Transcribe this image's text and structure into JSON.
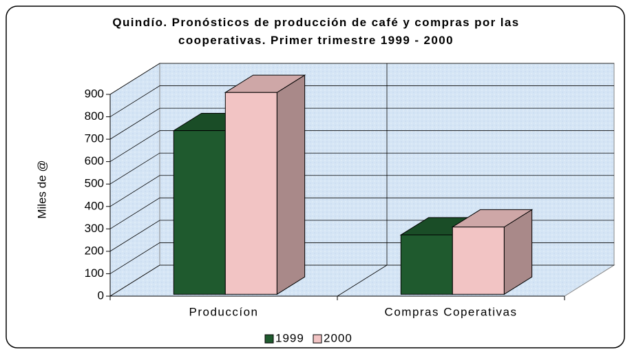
{
  "chart_data": {
    "type": "bar3d",
    "title": "Quindío. Pronósticos de producción de café y compras por las cooperativas. Primer trimestre 1999 - 2000",
    "y_label": "Miles de @",
    "categories": [
      "Produccíon",
      "Compras Coperativas"
    ],
    "series": [
      {
        "name": "1999",
        "color": "#1f5a2e",
        "values": [
          730,
          265
        ]
      },
      {
        "name": "2000",
        "color": "#f2c4c4",
        "values": [
          900,
          300
        ]
      }
    ],
    "ylim": [
      0,
      900
    ],
    "yticks": [
      0,
      100,
      200,
      300,
      400,
      500,
      600,
      700,
      800,
      900
    ],
    "grid": true,
    "legend": "bottom"
  }
}
